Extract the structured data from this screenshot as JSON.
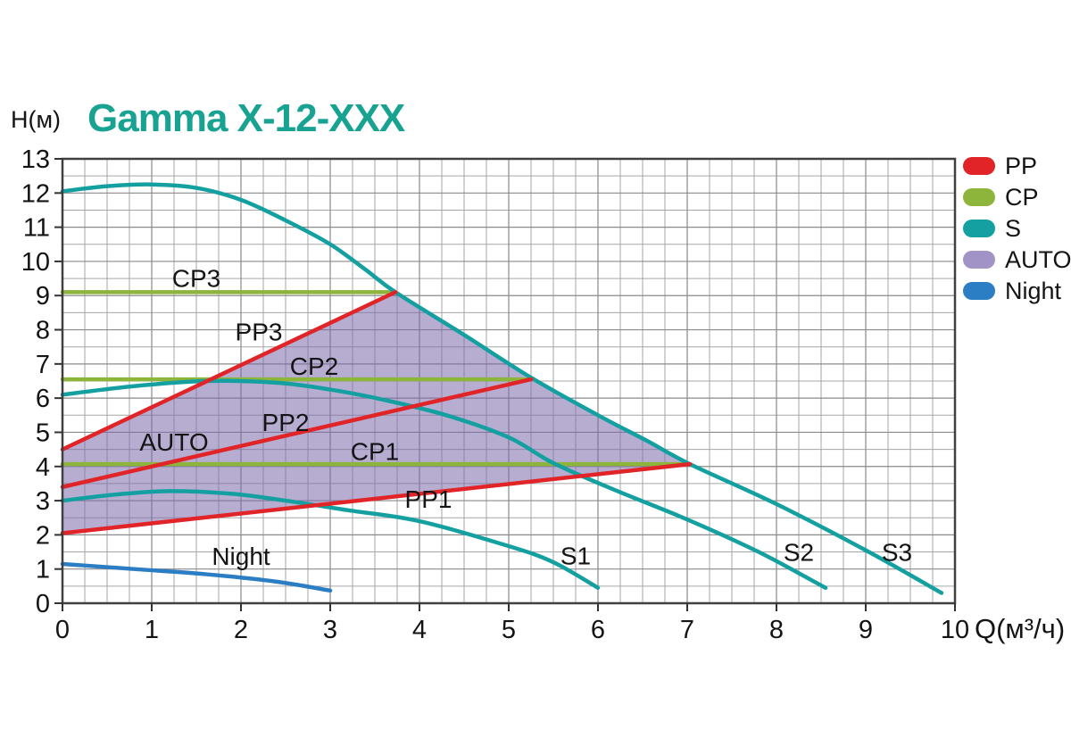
{
  "title": "Gamma X-12-XXX",
  "axis": {
    "y_title": "H(м)",
    "x_title": "Q(м³/ч)"
  },
  "legend": {
    "items": [
      {
        "label": "PP",
        "color": "#e02428"
      },
      {
        "label": "CP",
        "color": "#8db53c"
      },
      {
        "label": "S",
        "color": "#14a0a0"
      },
      {
        "label": "AUTO",
        "color": "#a193c5"
      },
      {
        "label": "Night",
        "color": "#2b7ec3"
      }
    ]
  },
  "colors": {
    "title": "#17a291",
    "text": "#141414",
    "grid_minor": "#a6a6a6",
    "grid_major": "#8a8a8a",
    "frame": "#404040",
    "tick": "#333333",
    "region_fill": "rgba(122,106,172,0.55)"
  },
  "chart_data": {
    "type": "line",
    "title": "Gamma X-12-XXX",
    "xlabel": "Q(м³/ч)",
    "ylabel": "H(м)",
    "xlim": [
      0,
      10
    ],
    "ylim": [
      0,
      13
    ],
    "x_ticks": [
      0,
      1,
      2,
      3,
      4,
      5,
      6,
      7,
      8,
      9,
      10
    ],
    "y_ticks": [
      0,
      1,
      2,
      3,
      4,
      5,
      6,
      7,
      8,
      9,
      10,
      11,
      12,
      13
    ],
    "x_minor_step": 0.25,
    "y_minor_step": 0.5,
    "grid": true,
    "legend_position": "top-right",
    "series": [
      {
        "name": "CP3",
        "group": "CP",
        "color": "#8db53c",
        "points": [
          [
            0,
            9.1
          ],
          [
            3.73,
            9.1
          ]
        ],
        "label": {
          "text": "CP3",
          "x": 1.5,
          "y": 9.52
        }
      },
      {
        "name": "CP2",
        "group": "CP",
        "color": "#8db53c",
        "points": [
          [
            0,
            6.55
          ],
          [
            5.25,
            6.55
          ]
        ],
        "label": {
          "text": "CP2",
          "x": 2.82,
          "y": 6.95
        }
      },
      {
        "name": "CP1",
        "group": "CP",
        "color": "#8db53c",
        "points": [
          [
            0,
            4.07
          ],
          [
            7.03,
            4.07
          ]
        ],
        "label": {
          "text": "CP1",
          "x": 3.5,
          "y": 4.45
        }
      },
      {
        "name": "S3",
        "group": "S",
        "color": "#14a0a0",
        "points": [
          [
            0,
            12.05
          ],
          [
            0.5,
            12.2
          ],
          [
            1,
            12.25
          ],
          [
            1.5,
            12.15
          ],
          [
            2,
            11.8
          ],
          [
            2.5,
            11.2
          ],
          [
            3,
            10.5
          ],
          [
            3.4,
            9.75
          ],
          [
            3.73,
            9.1
          ],
          [
            4.5,
            7.85
          ],
          [
            5.25,
            6.6
          ],
          [
            6,
            5.5
          ],
          [
            6.55,
            4.75
          ],
          [
            7.03,
            4.07
          ],
          [
            8,
            2.9
          ],
          [
            9,
            1.55
          ],
          [
            9.85,
            0.3
          ]
        ],
        "label": {
          "text": "S3",
          "x": 9.35,
          "y": 1.5
        }
      },
      {
        "name": "S2",
        "group": "S",
        "color": "#14a0a0",
        "points": [
          [
            0,
            6.1
          ],
          [
            0.8,
            6.35
          ],
          [
            1.6,
            6.5
          ],
          [
            2.4,
            6.45
          ],
          [
            3,
            6.25
          ],
          [
            3.6,
            5.95
          ],
          [
            4.3,
            5.5
          ],
          [
            5,
            4.85
          ],
          [
            5.5,
            4.1
          ],
          [
            6.2,
            3.3
          ],
          [
            7,
            2.45
          ],
          [
            7.8,
            1.5
          ],
          [
            8.55,
            0.45
          ]
        ],
        "label": {
          "text": "S2",
          "x": 8.25,
          "y": 1.5
        }
      },
      {
        "name": "S1",
        "group": "S",
        "color": "#14a0a0",
        "points": [
          [
            0,
            3.0
          ],
          [
            0.6,
            3.18
          ],
          [
            1.2,
            3.28
          ],
          [
            1.9,
            3.2
          ],
          [
            2.5,
            3.0
          ],
          [
            3.2,
            2.72
          ],
          [
            4,
            2.4
          ],
          [
            5,
            1.67
          ],
          [
            5.5,
            1.2
          ],
          [
            6,
            0.45
          ]
        ],
        "label": {
          "text": "S1",
          "x": 5.75,
          "y": 1.4
        }
      },
      {
        "name": "PP3",
        "group": "PP",
        "color": "#e02428",
        "points": [
          [
            0,
            4.5
          ],
          [
            3.73,
            9.1
          ]
        ],
        "label": {
          "text": "PP3",
          "x": 2.2,
          "y": 7.95
        }
      },
      {
        "name": "PP2",
        "group": "PP",
        "color": "#e02428",
        "points": [
          [
            0,
            3.4
          ],
          [
            5.25,
            6.55
          ]
        ],
        "label": {
          "text": "PP2",
          "x": 2.5,
          "y": 5.3
        }
      },
      {
        "name": "PP1",
        "group": "PP",
        "color": "#e02428",
        "points": [
          [
            0,
            2.05
          ],
          [
            7.03,
            4.07
          ]
        ],
        "label": {
          "text": "PP1",
          "x": 4.1,
          "y": 3.05
        }
      },
      {
        "name": "Night",
        "group": "Night",
        "color": "#2b7ec3",
        "points": [
          [
            0,
            1.15
          ],
          [
            0.8,
            1.0
          ],
          [
            1.6,
            0.85
          ],
          [
            2.4,
            0.63
          ],
          [
            3,
            0.37
          ]
        ],
        "label": {
          "text": "Night",
          "x": 2.0,
          "y": 1.38
        }
      }
    ],
    "region": {
      "name": "AUTO",
      "points": [
        [
          0,
          2.05
        ],
        [
          0,
          4.5
        ],
        [
          3.73,
          9.1
        ],
        [
          4.5,
          7.85
        ],
        [
          5.25,
          6.6
        ],
        [
          6,
          5.5
        ],
        [
          6.55,
          4.75
        ],
        [
          7.03,
          4.07
        ]
      ],
      "label": {
        "text": "AUTO",
        "x": 1.25,
        "y": 4.72
      }
    }
  }
}
